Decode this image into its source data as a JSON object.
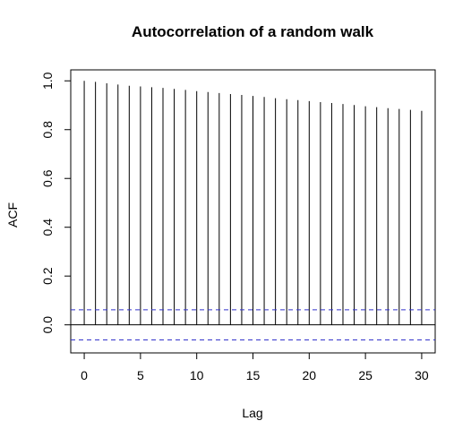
{
  "chart_data": {
    "type": "bar",
    "title": "Autocorrelation of a random walk",
    "xlabel": "Lag",
    "ylabel": "ACF",
    "xlim": [
      -1.2,
      31.2
    ],
    "ylim": [
      -0.115,
      1.045
    ],
    "x_ticks": [
      0,
      5,
      10,
      15,
      20,
      25,
      30
    ],
    "x_tick_labels": [
      "0",
      "5",
      "10",
      "15",
      "20",
      "25",
      "30"
    ],
    "y_ticks": [
      0.0,
      0.2,
      0.4,
      0.6,
      0.8,
      1.0
    ],
    "y_tick_labels": [
      "0.0",
      "0.2",
      "0.4",
      "0.6",
      "0.8",
      "1.0"
    ],
    "grid": false,
    "legend": "none",
    "lags": [
      0,
      1,
      2,
      3,
      4,
      5,
      6,
      7,
      8,
      9,
      10,
      11,
      12,
      13,
      14,
      15,
      16,
      17,
      18,
      19,
      20,
      21,
      22,
      23,
      24,
      25,
      26,
      27,
      28,
      29,
      30
    ],
    "values": [
      1.0,
      0.996,
      0.99,
      0.985,
      0.98,
      0.977,
      0.974,
      0.971,
      0.967,
      0.963,
      0.958,
      0.954,
      0.95,
      0.946,
      0.942,
      0.938,
      0.934,
      0.929,
      0.925,
      0.921,
      0.917,
      0.913,
      0.909,
      0.905,
      0.901,
      0.896,
      0.892,
      0.888,
      0.885,
      0.881,
      0.877
    ],
    "confidence_bound": 0.0618,
    "colors": {
      "bars": "#000000",
      "confidence": "#3333cc",
      "frame": "#000000"
    }
  }
}
